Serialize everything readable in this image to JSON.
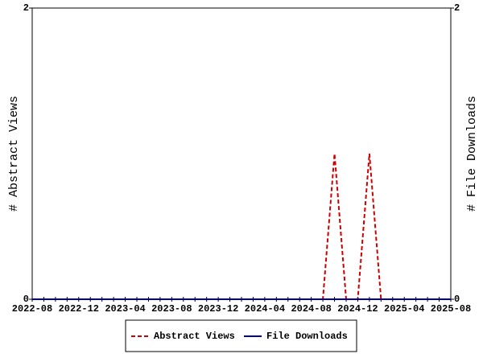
{
  "chart_data": {
    "type": "line",
    "categories": [
      "2022-08",
      null,
      null,
      null,
      "2022-12",
      null,
      null,
      null,
      "2023-04",
      null,
      null,
      null,
      "2023-08",
      null,
      null,
      null,
      "2023-12",
      null,
      null,
      null,
      "2024-04",
      null,
      null,
      null,
      "2024-08",
      null,
      null,
      null,
      "2024-12",
      null,
      null,
      null,
      "2025-04",
      null,
      null,
      null,
      "2025-08"
    ],
    "series": [
      {
        "name": "Abstract Views",
        "color": "#cc0000",
        "dashed": true,
        "values": [
          0,
          0,
          0,
          0,
          0,
          0,
          0,
          0,
          0,
          0,
          0,
          0,
          0,
          0,
          0,
          0,
          0,
          0,
          0,
          0,
          0,
          0,
          0,
          0,
          0,
          0,
          1,
          0,
          0,
          1,
          0,
          0,
          0,
          0,
          0,
          0,
          0
        ]
      },
      {
        "name": "File Downloads",
        "color": "#000099",
        "axis": "y2",
        "values": [
          0,
          0,
          0,
          0,
          0,
          0,
          0,
          0,
          0,
          0,
          0,
          0,
          0,
          0,
          0,
          0,
          0,
          0,
          0,
          0,
          0,
          0,
          0,
          0,
          0,
          0,
          0,
          0,
          0,
          0,
          0,
          0,
          0,
          0,
          0,
          0,
          0
        ]
      }
    ],
    "ylabel": "# Abstract Views",
    "y2label": "# File Downloads",
    "ylim": [
      0,
      2
    ],
    "yticks": [
      0,
      2
    ],
    "y2lim": [
      0,
      2
    ],
    "y2ticks": [
      0,
      2
    ],
    "legend": "bottom"
  }
}
